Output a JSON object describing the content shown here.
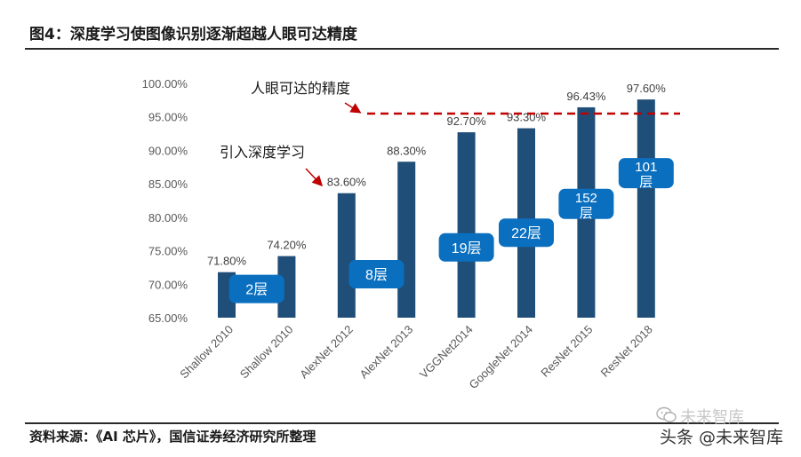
{
  "figure_title": "图4：深度学习使图像识别逐渐超越人眼可达精度",
  "source_note": "资料来源：《AI 芯片》，国信证券经济研究所整理",
  "watermark": {
    "text": "头条 @未来智库",
    "ghost_text": "未来智库",
    "icon": "wechat-icon"
  },
  "colors": {
    "bar": "#1f4e79",
    "label_box": "#0b6fbf",
    "threshold_line": "#c00000",
    "arrow": "#c00000"
  },
  "chart_data": {
    "type": "bar",
    "title": "",
    "categories": [
      "Shallow 2010",
      "Shallow 2010",
      "AlexNet 2012",
      "AlexNet 2013",
      "VGGNet2014",
      "GoogleNet 2014",
      "ResNet 2015",
      "ResNet 2018"
    ],
    "values": [
      71.8,
      74.2,
      83.6,
      88.3,
      92.7,
      93.3,
      96.43,
      97.6
    ],
    "value_labels": [
      "71.80%",
      "74.20%",
      "83.60%",
      "88.30%",
      "92.70%",
      "93.30%",
      "96.43%",
      "97.60%"
    ],
    "ylim": [
      65,
      100
    ],
    "yticks": [
      65,
      70,
      75,
      80,
      85,
      90,
      95,
      100
    ],
    "ytick_labels": [
      "65.00%",
      "70.00%",
      "75.00%",
      "80.00%",
      "85.00%",
      "90.00%",
      "95.00%",
      "100.00%"
    ],
    "xlabel": "",
    "ylabel": "",
    "human_level": {
      "value": 95.5,
      "label": "人眼可达的精度"
    },
    "deep_learning_start": {
      "label": "引入深度学习"
    },
    "layer_badges": [
      {
        "text": "2层",
        "bars": [
          0,
          1
        ],
        "level": 69.3
      },
      {
        "text": "8层",
        "bars": [
          2,
          3
        ],
        "level": 71.5
      },
      {
        "text": "19层",
        "bars": [
          4
        ],
        "level": 75.5
      },
      {
        "text": "22层",
        "bars": [
          5
        ],
        "level": 77.7
      },
      {
        "text": "152层",
        "bars": [
          6
        ],
        "level": 82.0
      },
      {
        "text": "101层",
        "bars": [
          7
        ],
        "level": 86.6
      }
    ]
  }
}
